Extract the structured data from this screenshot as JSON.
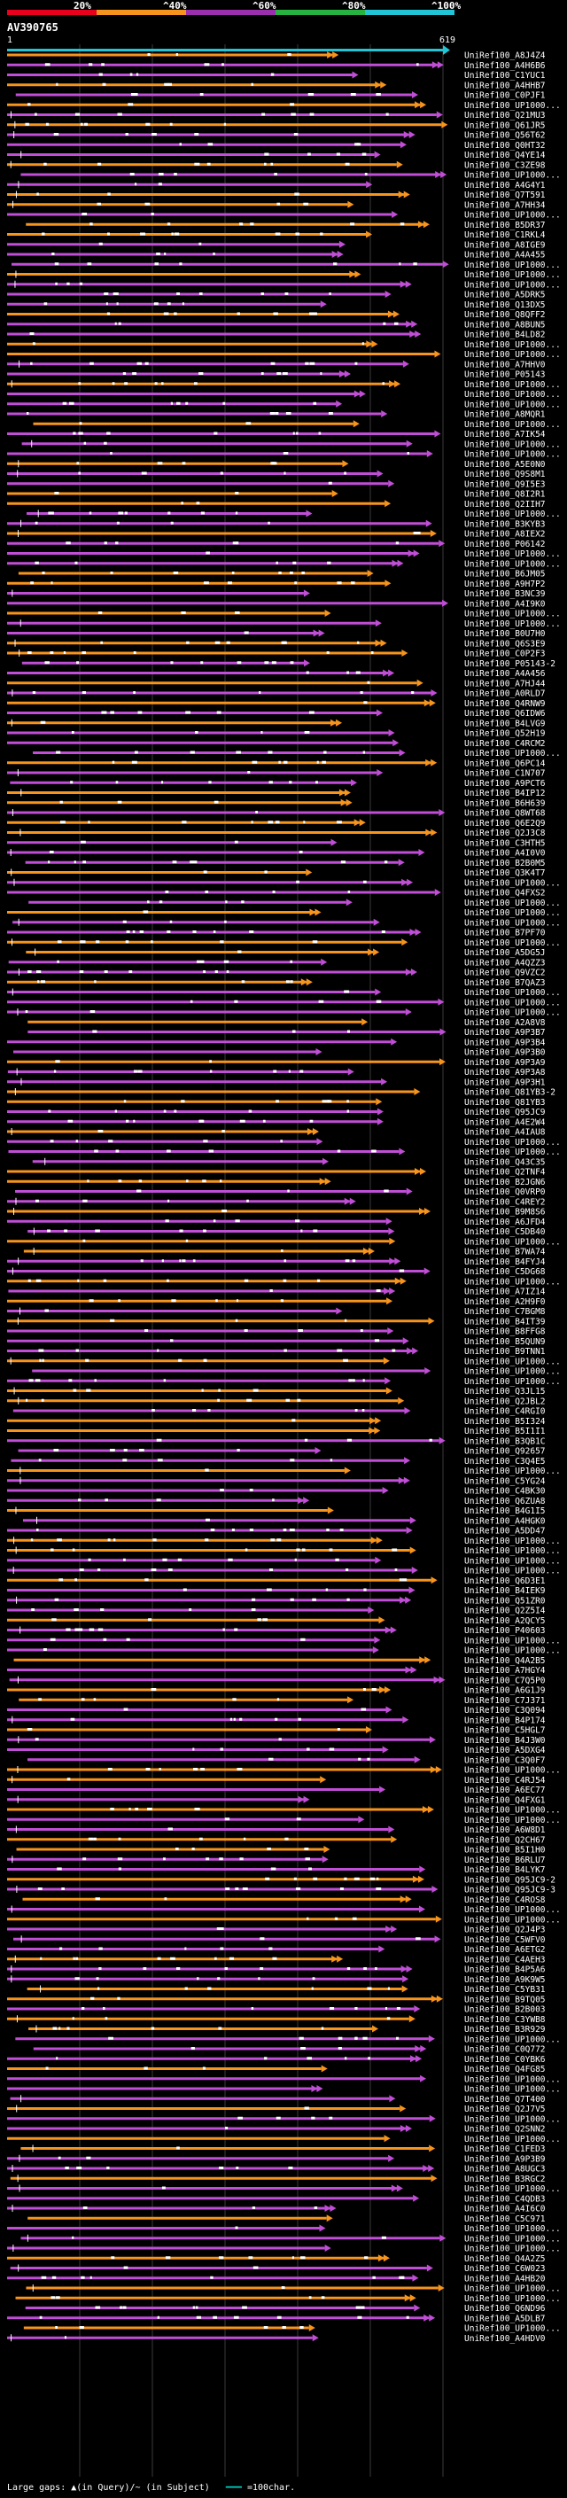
{
  "legend": {
    "labels": [
      "20%",
      "^40%",
      "^60%",
      "^80%",
      "^100%"
    ],
    "colors": [
      "#e8001c",
      "#f7941d",
      "#9b2fae",
      "#27b33f",
      "#21c5d6"
    ]
  },
  "query": {
    "name": "AV390765",
    "start": "1",
    "end": "619"
  },
  "footer": {
    "text": "Large gaps: ▲(in Query)/~ (in Subject)",
    "scale_text": "=100char."
  },
  "colors": {
    "orange": "#f7941d",
    "purple": "#c04ed6",
    "white": "#ffffff",
    "cyan": "#21c5d6"
  },
  "chart_data": {
    "type": "alignment",
    "query_length": 619,
    "hits": [
      "UniRef100_A8J4Z4",
      "UniRef100_A4H6B6",
      "UniRef100_C1YUC1",
      "UniRef100_A4HHB7",
      "UniRef100_C0PJF1",
      "UniRef100_UP1000...",
      "UniRef100_Q21MU3",
      "UniRef100_Q61JR5",
      "UniRef100_Q56T62",
      "UniRef100_Q0HT32",
      "UniRef100_Q4YE14",
      "UniRef100_C3ZE98",
      "UniRef100_UP1000...",
      "UniRef100_A4G4Y1",
      "UniRef100_Q7T591",
      "UniRef100_A7HH34",
      "UniRef100_UP1000...",
      "UniRef100_B5DR37",
      "UniRef100_C1RKL4",
      "UniRef100_A8IGE9",
      "UniRef100_A4A455",
      "UniRef100_UP1000...",
      "UniRef100_UP1000...",
      "UniRef100_UP1000...",
      "UniRef100_A5DRK5",
      "UniRef100_Q13DX5",
      "UniRef100_Q8QFF2",
      "UniRef100_A8BUN5",
      "UniRef100_B4LD82",
      "UniRef100_UP1000...",
      "UniRef100_UP1000...",
      "UniRef100_A7HHV0",
      "UniRef100_P05143",
      "UniRef100_UP1000...",
      "UniRef100_UP1000...",
      "UniRef100_UP1000...",
      "UniRef100_A8MQR1",
      "UniRef100_UP1000...",
      "UniRef100_A7IK54",
      "UniRef100_UP1000...",
      "UniRef100_UP1000...",
      "UniRef100_A5E0N0",
      "UniRef100_Q9S8M1",
      "UniRef100_Q9I5E3",
      "UniRef100_Q8I2R1",
      "UniRef100_Q2IIH7",
      "UniRef100_UP1000...",
      "UniRef100_B3KYB3",
      "UniRef100_A8IEX2",
      "UniRef100_P06142",
      "UniRef100_UP1000...",
      "UniRef100_UP1000...",
      "UniRef100_B6JM05",
      "UniRef100_A9H7P2",
      "UniRef100_B3NC39",
      "UniRef100_A4I9K0",
      "UniRef100_UP1000...",
      "UniRef100_UP1000...",
      "UniRef100_B0U7H0",
      "UniRef100_Q6S3E9",
      "UniRef100_C0P2F3",
      "UniRef100_P05143-2",
      "UniRef100_A4A456",
      "UniRef100_A7HJ44",
      "UniRef100_A0RLD7",
      "UniRef100_Q4RNW9",
      "UniRef100_Q6IDW6",
      "UniRef100_B4LVG9",
      "UniRef100_Q52H19",
      "UniRef100_C4RCM2",
      "UniRef100_UP1000...",
      "UniRef100_Q6PC14",
      "UniRef100_C1N707",
      "UniRef100_A9PCT6",
      "UniRef100_B4IP12",
      "UniRef100_B6H639",
      "UniRef100_Q8WT68",
      "UniRef100_Q6E2Q9",
      "UniRef100_Q2J3C8",
      "UniRef100_C3HTH5",
      "UniRef100_A4I0V0",
      "UniRef100_B2B0M5",
      "UniRef100_Q3K4T7",
      "UniRef100_UP1000...",
      "UniRef100_Q4FXS2",
      "UniRef100_UP1000...",
      "UniRef100_UP1000...",
      "UniRef100_UP1000...",
      "UniRef100_B7PF70",
      "UniRef100_UP1000...",
      "UniRef100_A5DG5J",
      "UniRef100_A4QZZ3",
      "UniRef100_Q9VZC2",
      "UniRef100_B7QAZ3",
      "UniRef100_UP1000...",
      "UniRef100_UP1000...",
      "UniRef100_UP1000...",
      "UniRef100_A2A8V8",
      "UniRef100_A9P3B7",
      "UniRef100_A9P3B4",
      "UniRef100_A9P3B0",
      "UniRef100_A9P3A9",
      "UniRef100_A9P3A8",
      "UniRef100_A9P3H1",
      "UniRef100_Q81YB3-2",
      "UniRef100_Q81YB3",
      "UniRef100_Q95JC9",
      "UniRef100_A4E2W4",
      "UniRef100_A4IAU8",
      "UniRef100_UP1000...",
      "UniRef100_UP1000...",
      "UniRef100_Q43C35",
      "UniRef100_Q2TNF4",
      "UniRef100_B2JGN6",
      "UniRef100_Q0VRP0",
      "UniRef100_C4REY2",
      "UniRef100_B9M8S6",
      "UniRef100_A6JFD4",
      "UniRef100_C5DB40",
      "UniRef100_UP1000...",
      "UniRef100_B7WA74",
      "UniRef100_B4FYJ4",
      "UniRef100_C5DG68",
      "UniRef100_UP1000...",
      "UniRef100_A7IZ14",
      "UniRef100_A2H9F0",
      "UniRef100_C7BGM8",
      "UniRef100_B4IT39",
      "UniRef100_B8FFG8",
      "UniRef100_B5QUN9",
      "UniRef100_B9TNN1",
      "UniRef100_UP1000...",
      "UniRef100_UP1000...",
      "UniRef100_UP1000...",
      "UniRef100_Q3JL15",
      "UniRef100_Q2JBL2",
      "UniRef100_C4RGI0",
      "UniRef100_B5I324",
      "UniRef100_B5I1I1",
      "UniRef100_B3QB1C",
      "UniRef100_Q92657",
      "UniRef100_C3Q4E5",
      "UniRef100_UP1000...",
      "UniRef100_C5YG24",
      "UniRef100_C4BK30",
      "UniRef100_Q6ZUA8",
      "UniRef100_B4G1I5",
      "UniRef100_A4HGK0",
      "UniRef100_A5DD47",
      "UniRef100_UP1000...",
      "UniRef100_UP1000...",
      "UniRef100_UP1000...",
      "UniRef100_UP1000...",
      "UniRef100_Q6D3E1",
      "UniRef100_B4IEK9",
      "UniRef100_Q51ZR0",
      "UniRef100_Q2Z5I4",
      "UniRef100_A2QCY5",
      "UniRef100_P40603",
      "UniRef100_UP1000...",
      "UniRef100_UP1000...",
      "UniRef100_Q4A2B5",
      "UniRef100_A7HGY4",
      "UniRef100_C7Q5P0",
      "UniRef100_A6G1J9",
      "UniRef100_C7J371",
      "UniRef100_C3Q094",
      "UniRef100_B4P174",
      "UniRef100_C5HGL7",
      "UniRef100_B4J3W0",
      "UniRef100_A5DXG4",
      "UniRef100_C3Q0F7",
      "UniRef100_UP1000...",
      "UniRef100_C4RJ54",
      "UniRef100_A6EC77",
      "UniRef100_Q4FXG1",
      "UniRef100_UP1000...",
      "UniRef100_UP1000...",
      "UniRef100_A6W8D1",
      "UniRef100_Q2CH67",
      "UniRef100_B5I1H0",
      "UniRef100_B6RLU7",
      "UniRef100_B4LYK7",
      "UniRef100_Q95JC9-2",
      "UniRef100_Q95JC9-3",
      "UniRef100_C4ROS8",
      "UniRef100_UP1000...",
      "UniRef100_UP1000...",
      "UniRef100_Q2J4P3",
      "UniRef100_C5WFV0",
      "UniRef100_A6ETG2",
      "UniRef100_C4AEH3",
      "UniRef100_B4P5A6",
      "UniRef100_A9K9W5",
      "UniRef100_C5YB31",
      "UniRef100_B9TQ05",
      "UniRef100_B2B003",
      "UniRef100_C3YWB8",
      "UniRef100_B3R929",
      "UniRef100_UP1000...",
      "UniRef100_C0Q772",
      "UniRef100_C0YBK6",
      "UniRef100_Q4FG85",
      "UniRef100_UP1000...",
      "UniRef100_UP1000...",
      "UniRef100_Q7T400",
      "UniRef100_Q2J7V5",
      "UniRef100_UP1000...",
      "UniRef100_Q2SNN2",
      "UniRef100_UP1000...",
      "UniRef100_C1FED3",
      "UniRef100_A9P3B9",
      "UniRef100_A8UGC3",
      "UniRef100_B3RGC2",
      "UniRef100_UP1000...",
      "UniRef100_C4QDB3",
      "UniRef100_A4I6C0",
      "UniRef100_C5C971",
      "UniRef100_UP1000...",
      "UniRef100_UP1000...",
      "UniRef100_UP1000...",
      "UniRef100_Q4A2Z5",
      "UniRef100_C6W023",
      "UniRef100_A4HB20",
      "UniRef100_UP1000...",
      "UniRef100_UP1000...",
      "UniRef100_Q6ND96",
      "UniRef100_A5DLB7",
      "UniRef100_UP1000...",
      "UniRef100_A4HDV0"
    ]
  }
}
